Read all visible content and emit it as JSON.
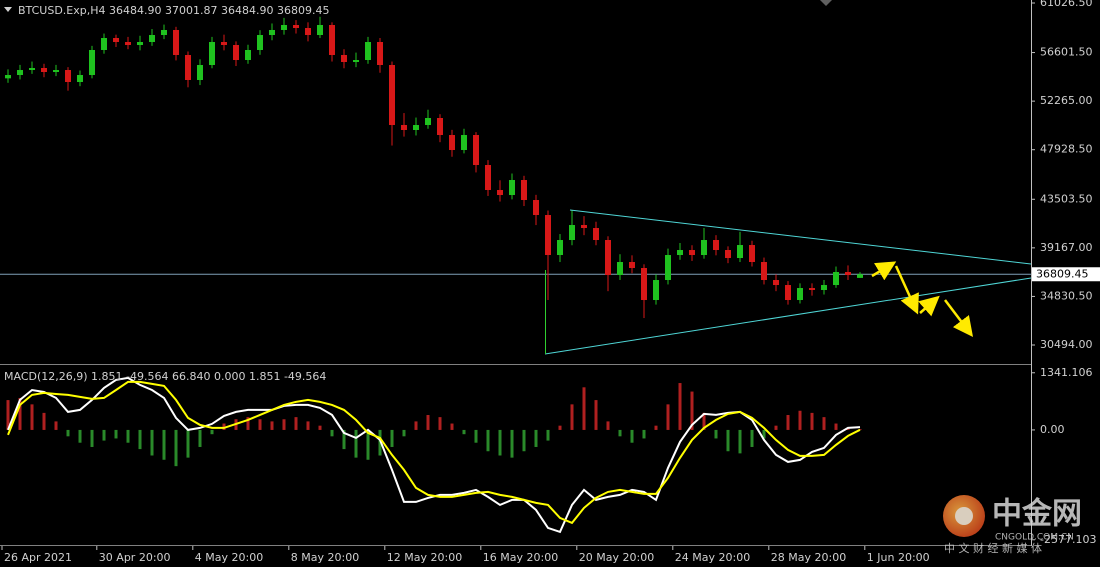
{
  "chart_data": [
    {
      "type": "candlestick",
      "title": "BTCUSD.Exp,H4  36484.90 37001.87 36484.90 36809.45",
      "x": [
        0,
        1,
        2,
        3,
        4,
        5,
        6,
        7,
        8,
        9,
        10,
        11,
        12,
        13,
        14,
        15,
        16,
        17,
        18,
        19,
        20,
        21,
        22,
        23,
        24,
        25,
        26,
        27,
        28,
        29,
        30,
        31,
        32,
        33,
        34,
        35,
        36,
        37,
        38,
        39,
        40,
        41,
        42,
        43,
        44,
        45,
        46,
        47,
        48,
        49,
        50,
        51,
        52,
        53,
        54,
        55,
        56,
        57,
        58,
        59,
        60,
        61,
        62,
        63,
        64,
        65,
        66,
        67,
        68,
        69,
        70,
        71
      ],
      "ohlc": [
        [
          54300,
          55100,
          53900,
          54598
        ],
        [
          54598,
          55500,
          54200,
          55044
        ],
        [
          55044,
          55800,
          54700,
          55223
        ],
        [
          55223,
          55600,
          54400,
          54866
        ],
        [
          54866,
          55500,
          54500,
          55044
        ],
        [
          55044,
          55300,
          53200,
          53973
        ],
        [
          53973,
          55000,
          53600,
          54598
        ],
        [
          54598,
          57200,
          54300,
          56830
        ],
        [
          56830,
          58300,
          56500,
          57901
        ],
        [
          57901,
          58200,
          57100,
          57544
        ],
        [
          57544,
          58000,
          56900,
          57276
        ],
        [
          57276,
          58100,
          56800,
          57544
        ],
        [
          57544,
          58700,
          57200,
          58169
        ],
        [
          58169,
          59100,
          57800,
          58616
        ],
        [
          58616,
          58900,
          55900,
          56384
        ],
        [
          56384,
          56700,
          53500,
          54152
        ],
        [
          54152,
          56000,
          53700,
          55491
        ],
        [
          55491,
          58000,
          55200,
          57544
        ],
        [
          57544,
          58200,
          56800,
          57276
        ],
        [
          57276,
          57600,
          55400,
          55937
        ],
        [
          55937,
          57300,
          55600,
          56830
        ],
        [
          56830,
          58600,
          56400,
          58169
        ],
        [
          58169,
          59200,
          57700,
          58616
        ],
        [
          58616,
          59700,
          58200,
          59062
        ],
        [
          59062,
          59500,
          58300,
          58794
        ],
        [
          58794,
          59300,
          57600,
          58169
        ],
        [
          58169,
          59800,
          57900,
          59062
        ],
        [
          59062,
          59300,
          55800,
          56384
        ],
        [
          56384,
          56900,
          55200,
          55759
        ],
        [
          55759,
          56600,
          55300,
          55937
        ],
        [
          55937,
          58000,
          55600,
          57544
        ],
        [
          57544,
          57900,
          54800,
          55491
        ],
        [
          55491,
          55800,
          48300,
          50134
        ],
        [
          50134,
          51200,
          49100,
          49688
        ],
        [
          49688,
          50800,
          49200,
          50134
        ],
        [
          50134,
          51500,
          49800,
          50759
        ],
        [
          50759,
          51100,
          48600,
          49241
        ],
        [
          49241,
          49700,
          47300,
          47902
        ],
        [
          47902,
          49800,
          47600,
          49241
        ],
        [
          49241,
          49500,
          45900,
          46563
        ],
        [
          46563,
          47000,
          43800,
          44331
        ],
        [
          44331,
          45200,
          43300,
          43884
        ],
        [
          43884,
          45800,
          43500,
          45224
        ],
        [
          45224,
          45600,
          42900,
          43438
        ],
        [
          43438,
          43900,
          41200,
          42099
        ],
        [
          42099,
          42500,
          34510,
          38528
        ],
        [
          38528,
          40400,
          37900,
          39867
        ],
        [
          39867,
          42545,
          39400,
          41206
        ],
        [
          41206,
          42000,
          40300,
          40938
        ],
        [
          40938,
          41500,
          39400,
          39867
        ],
        [
          39867,
          40200,
          35300,
          36742
        ],
        [
          36742,
          38600,
          36300,
          37903
        ],
        [
          37903,
          38500,
          36900,
          37367
        ],
        [
          37367,
          37700,
          32900,
          34510
        ],
        [
          34510,
          36800,
          34100,
          36296
        ],
        [
          36296,
          39100,
          35900,
          38528
        ],
        [
          38528,
          39600,
          38100,
          38974
        ],
        [
          38974,
          39400,
          38000,
          38528
        ],
        [
          38528,
          40938,
          38200,
          39867
        ],
        [
          39867,
          40300,
          38500,
          38974
        ],
        [
          38974,
          39300,
          37800,
          38260
        ],
        [
          38260,
          40600,
          37900,
          39420
        ],
        [
          39420,
          39800,
          37500,
          37903
        ],
        [
          37903,
          38300,
          35900,
          36296
        ],
        [
          36296,
          36800,
          35300,
          35849
        ],
        [
          35849,
          36200,
          34100,
          34510
        ],
        [
          34510,
          36000,
          34200,
          35581
        ],
        [
          35581,
          36000,
          34900,
          35403
        ],
        [
          35403,
          36300,
          35000,
          35849
        ],
        [
          35849,
          37500,
          35600,
          37010
        ],
        [
          37010,
          37600,
          36300,
          36742
        ],
        [
          36484.9,
          37001.87,
          36484.9,
          36809.45
        ]
      ],
      "colors": {
        "up": "#1fc21f",
        "down": "#d81818"
      },
      "xlim": [
        -0.667,
        85.167
      ],
      "xticks": [
        {
          "value": -0.5,
          "label": "26 Apr 2021"
        },
        {
          "value": 7.4,
          "label": "30 Apr 20:00"
        },
        {
          "value": 15.4,
          "label": "4 May 20:00"
        },
        {
          "value": 23.4,
          "label": "8 May 20:00"
        },
        {
          "value": 31.4,
          "label": "12 May 20:00"
        },
        {
          "value": 39.4,
          "label": "16 May 20:00"
        },
        {
          "value": 47.4,
          "label": "20 May 20:00"
        },
        {
          "value": 55.4,
          "label": "24 May 20:00"
        },
        {
          "value": 63.4,
          "label": "28 May 20:00"
        },
        {
          "value": 71.4,
          "label": "1 Jun 20:00"
        }
      ],
      "ylim": [
        28887,
        61294
      ],
      "yticks": [
        {
          "value": 61026.5,
          "label": "61026.50"
        },
        {
          "value": 56601.5,
          "label": "56601.50"
        },
        {
          "value": 52265,
          "label": "52265.00"
        },
        {
          "value": 47928.5,
          "label": "47928.50"
        },
        {
          "value": 43503.5,
          "label": "43503.50"
        },
        {
          "value": 39167,
          "label": "39167.00"
        },
        {
          "value": 34830.5,
          "label": "34830.50"
        },
        {
          "value": 30494,
          "label": "30494.00"
        }
      ],
      "current_price": 36809.45
    },
    {
      "type": "macd",
      "title": "MACD(12,26,9) 1.851 -49.564 66.840 0.000 1.851 -49.564",
      "ylim": [
        -2700,
        1500
      ],
      "yticks": [
        1341.106,
        {
          "value": 0,
          "label": "0.00"
        },
        -2577.103
      ],
      "histogram": {
        "up_color": "#b02020",
        "down_color": "#2a8a2a",
        "values": [
          700,
          750,
          600,
          400,
          200,
          -150,
          -300,
          -400,
          -250,
          -200,
          -300,
          -450,
          -600,
          -700,
          -850,
          -650,
          -400,
          -100,
          150,
          250,
          300,
          250,
          200,
          250,
          300,
          200,
          100,
          -150,
          -450,
          -650,
          -700,
          -600,
          -400,
          -150,
          200,
          350,
          300,
          150,
          -100,
          -300,
          -500,
          -600,
          -650,
          -500,
          -400,
          -250,
          100,
          600,
          1000,
          700,
          200,
          -150,
          -300,
          -200,
          100,
          600,
          1100,
          900,
          400,
          -200,
          -500,
          -550,
          -400,
          -200,
          100,
          350,
          450,
          400,
          300,
          150,
          50,
          20
        ]
      },
      "main": {
        "color": "#ffffff",
        "values": [
          0,
          704,
          938,
          891,
          751,
          422,
          469,
          704,
          985,
          1173,
          1220,
          1056,
          938,
          751,
          282,
          0,
          47,
          141,
          328,
          422,
          469,
          469,
          469,
          563,
          587,
          587,
          516,
          352,
          -70,
          -188,
          0,
          -235,
          -938,
          -1689,
          -1689,
          -1595,
          -1525,
          -1525,
          -1478,
          -1408,
          -1572,
          -1760,
          -1642,
          -1642,
          -1877,
          -2299,
          -2393,
          -1760,
          -1408,
          -1642,
          -1572,
          -1525,
          -1408,
          -1455,
          -1642,
          -891,
          -282,
          117,
          375,
          352,
          399,
          422,
          235,
          -235,
          -587,
          -751,
          -704,
          -516,
          -422,
          -117,
          47,
          66.84
        ]
      },
      "signal": {
        "color": "#ffff00",
        "values": [
          -117,
          587,
          821,
          868,
          844,
          821,
          774,
          727,
          751,
          938,
          1126,
          1126,
          1079,
          1032,
          704,
          282,
          117,
          47,
          47,
          141,
          235,
          352,
          469,
          587,
          657,
          704,
          657,
          587,
          469,
          235,
          -70,
          -188,
          -587,
          -938,
          -1361,
          -1525,
          -1572,
          -1572,
          -1525,
          -1478,
          -1455,
          -1525,
          -1572,
          -1642,
          -1713,
          -1760,
          -2064,
          -2182,
          -1830,
          -1596,
          -1455,
          -1408,
          -1455,
          -1502,
          -1502,
          -1126,
          -657,
          -235,
          47,
          235,
          375,
          422,
          282,
          47,
          -235,
          -469,
          -610,
          -610,
          -587,
          -352,
          -141,
          1.851
        ]
      }
    },
    {
      "type": "watermark",
      "title": "中金网",
      "site": "CNGOLD.COM.CN",
      "tagline": "中 文 财 经 新 媒 体"
    }
  ]
}
